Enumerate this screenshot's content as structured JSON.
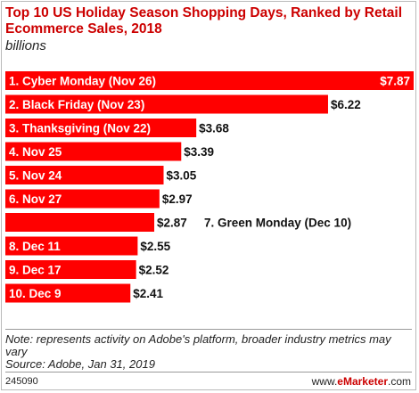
{
  "chart_data": {
    "type": "bar",
    "orientation": "horizontal",
    "title": "Top 10 US Holiday Season Shopping Days, Ranked by Retail Ecommerce Sales, 2018",
    "subtitle": "billions",
    "categories": [
      "1. Cyber Monday (Nov 26)",
      "2. Black Friday (Nov 23)",
      "3. Thanksgiving (Nov 22)",
      "4. Nov 25",
      "5. Nov 24",
      "6. Nov 27",
      "7. Green Monday (Dec 10)",
      "8. Dec 11",
      "9. Dec 17",
      "10. Dec 9"
    ],
    "values": [
      7.87,
      6.22,
      3.68,
      3.39,
      3.05,
      2.97,
      2.87,
      2.55,
      2.52,
      2.41
    ],
    "value_labels": [
      "$7.87",
      "$6.22",
      "$3.68",
      "$3.39",
      "$3.05",
      "$2.97",
      "$2.87",
      "$2.55",
      "$2.52",
      "$2.41"
    ],
    "category_label_outside_bar": [
      false,
      false,
      false,
      false,
      false,
      false,
      true,
      false,
      false,
      false
    ],
    "bar_color": "#ff0000"
  },
  "note": "Note: represents activity on Adobe's platform, broader industry metrics may vary",
  "source": "Source: Adobe, Jan 31, 2019",
  "footer": {
    "id": "245090",
    "url_prefix": "www.",
    "url_brand": "eMarketer",
    "url_suffix": ".com",
    "brand_color": "#cc0000"
  }
}
